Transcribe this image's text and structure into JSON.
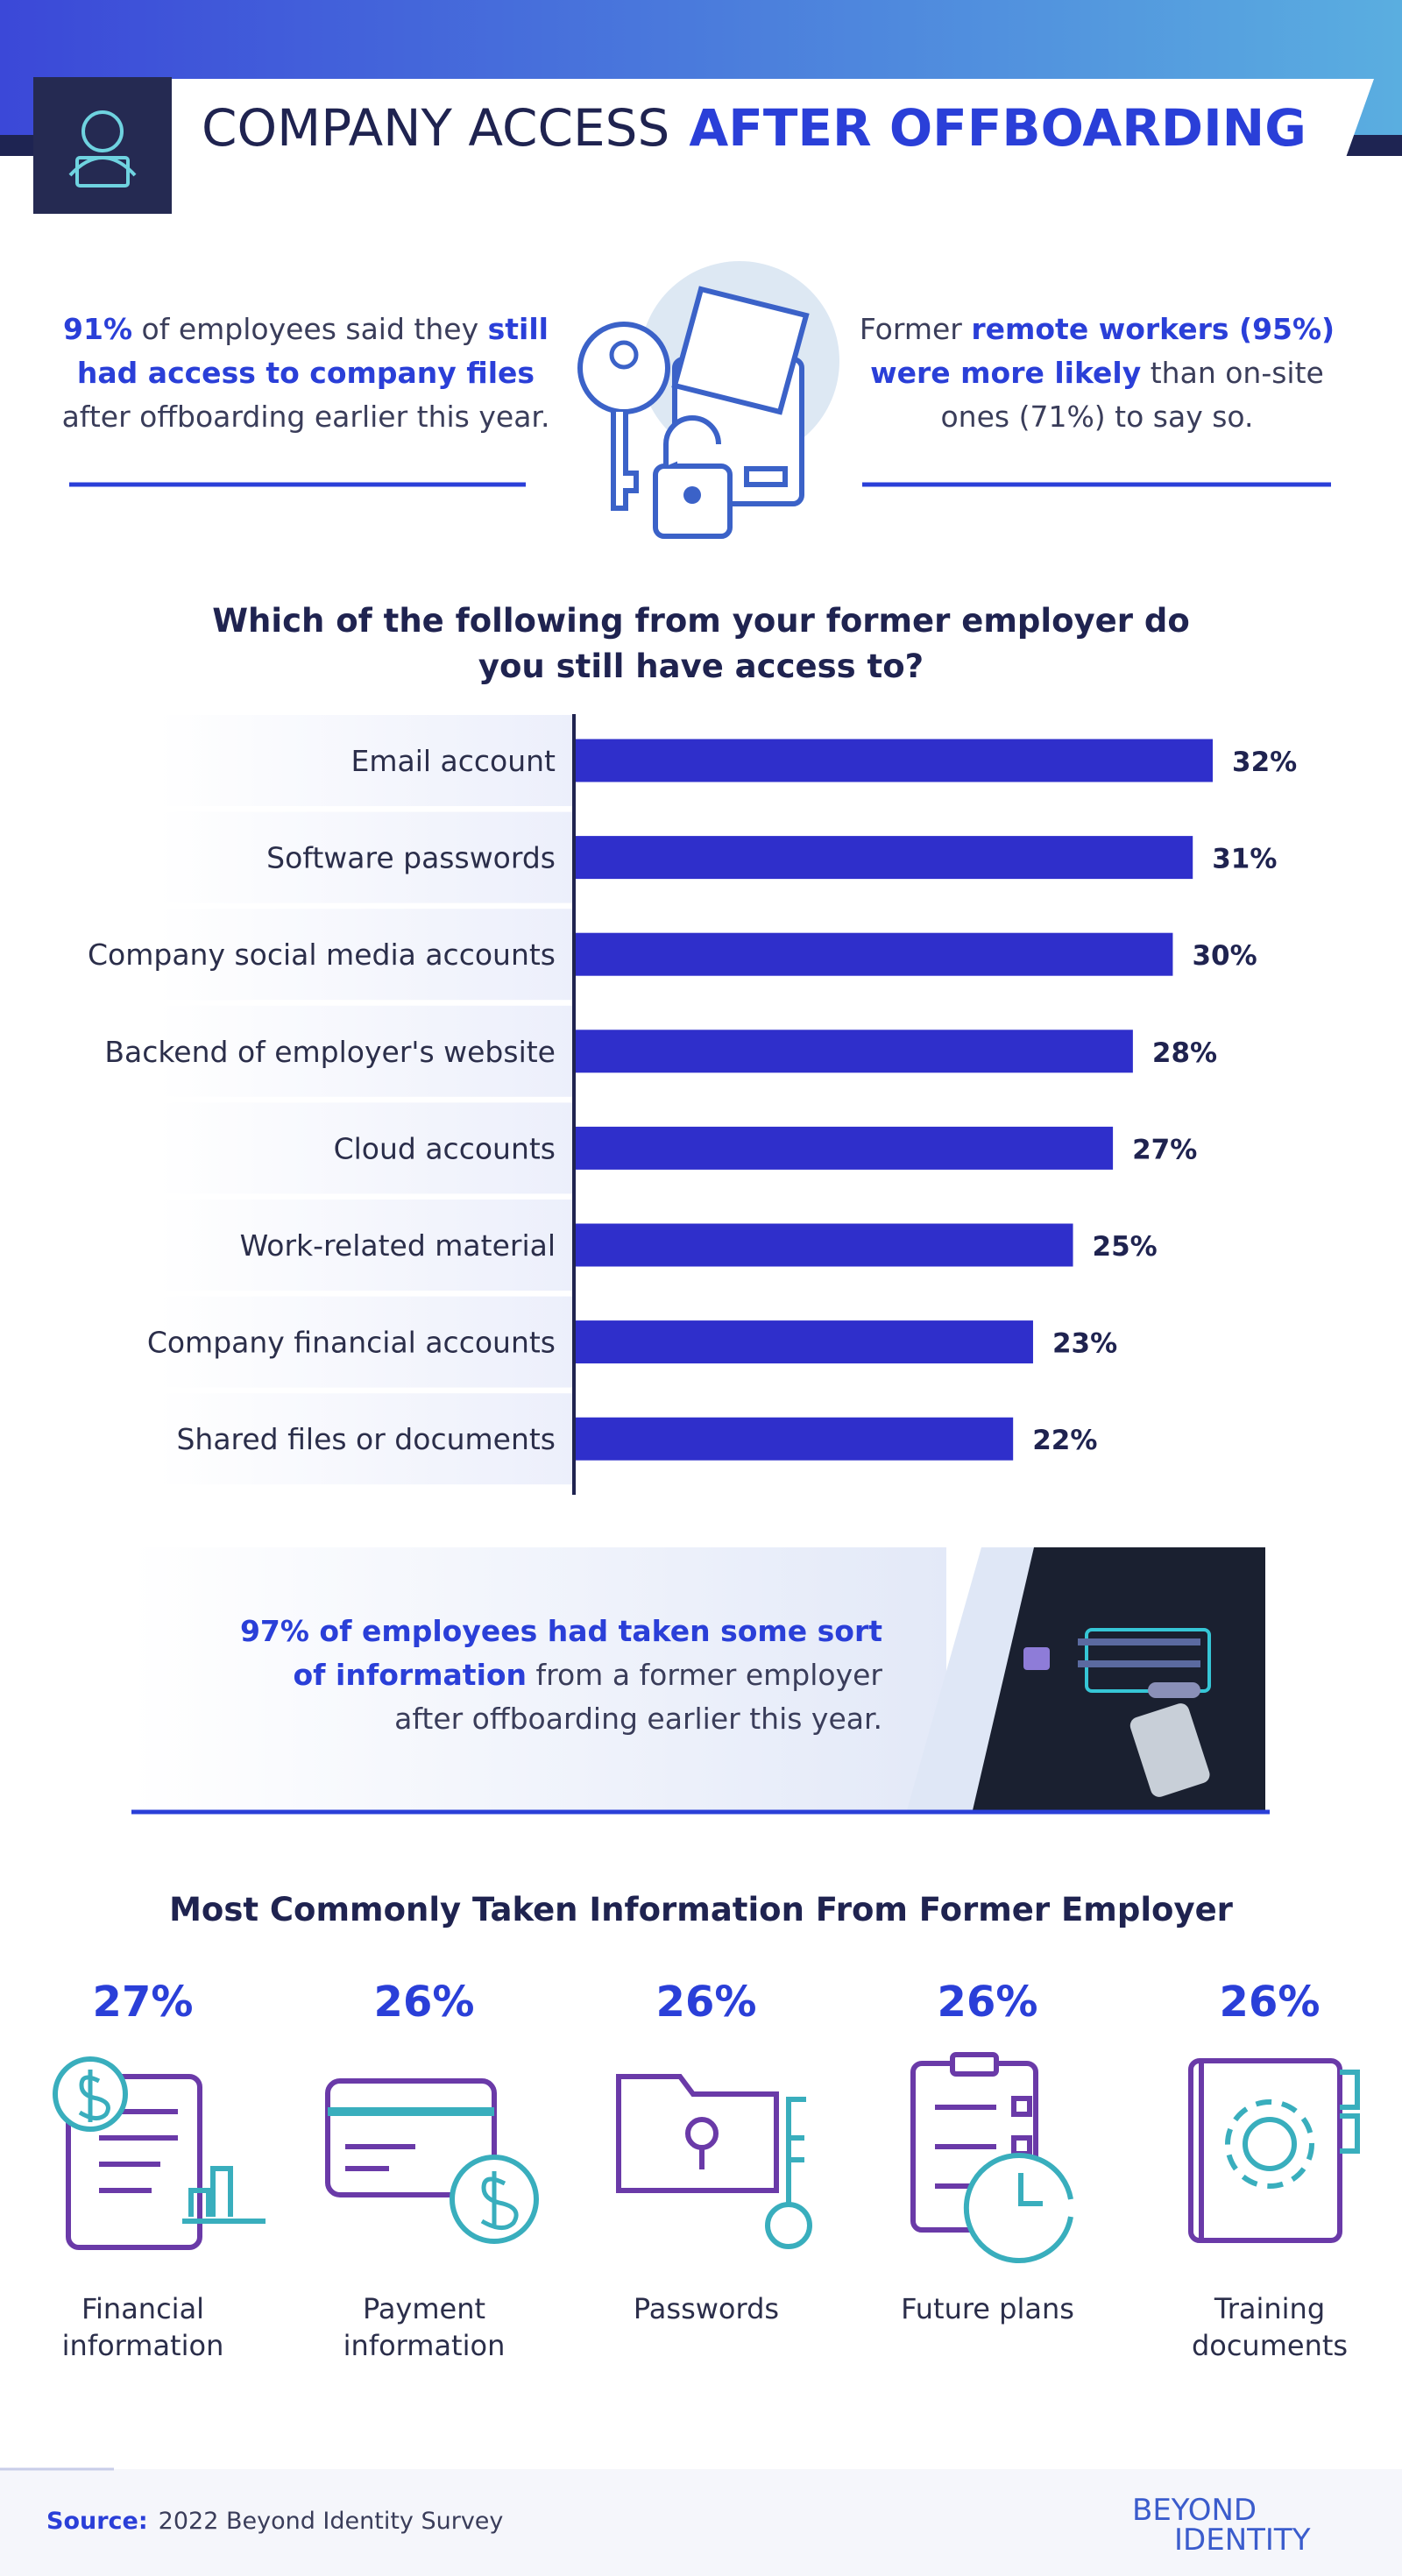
{
  "header": {
    "title_plain": "COMPANY ACCESS",
    "title_bold": "AFTER OFFBOARDING"
  },
  "stat_left": {
    "lines": [
      [
        {
          "text": "91%",
          "strong": true
        },
        {
          "text": " of employees said they "
        },
        {
          "text": "still",
          "strong": true
        }
      ],
      [
        {
          "text": "had access to company files",
          "strong": true
        }
      ],
      [
        {
          "text": "after offboarding earlier this year."
        }
      ]
    ]
  },
  "stat_right": {
    "lines": [
      [
        {
          "text": "Former "
        },
        {
          "text": "remote workers (95%)",
          "strong": true
        }
      ],
      [
        {
          "text": "were more likely",
          "strong": true
        },
        {
          "text": " than on-site"
        }
      ],
      [
        {
          "text": "ones (71%) to say so."
        }
      ]
    ]
  },
  "chart_data": {
    "type": "bar",
    "orientation": "horizontal",
    "title": [
      "Which of the following from your former employer do",
      "you still have access to?"
    ],
    "categories": [
      "Email account",
      "Software passwords",
      "Company social media accounts",
      "Backend of employer's website",
      "Cloud accounts",
      "Work-related material",
      "Company financial accounts",
      "Shared files or documents"
    ],
    "values": [
      32,
      31,
      30,
      28,
      27,
      25,
      23,
      22
    ],
    "value_labels": [
      "32%",
      "31%",
      "30%",
      "28%",
      "27%",
      "25%",
      "23%",
      "22%"
    ],
    "color": "#2f2fcb"
  },
  "info_block": {
    "lines": [
      [
        {
          "text": "97% of employees had taken some sort",
          "strong": true
        }
      ],
      [
        {
          "text": "of information",
          "strong": true
        },
        {
          "text": " from a former employer"
        }
      ],
      [
        {
          "text": "after offboarding earlier this year."
        }
      ]
    ]
  },
  "taken_info": {
    "title": "Most Commonly Taken Information From Former Employer",
    "items": [
      {
        "percent": "27%",
        "label": [
          "Financial",
          "information"
        ]
      },
      {
        "percent": "26%",
        "label": [
          "Payment",
          "information"
        ]
      },
      {
        "percent": "26%",
        "label": [
          "Passwords"
        ]
      },
      {
        "percent": "26%",
        "label": [
          "Future plans"
        ]
      },
      {
        "percent": "26%",
        "label": [
          "Training",
          "documents"
        ]
      }
    ]
  },
  "footer": {
    "source_label": "Source:",
    "source": "2022 Beyond Identity Survey",
    "logo": [
      "BEYOND",
      "IDENTITY"
    ]
  }
}
